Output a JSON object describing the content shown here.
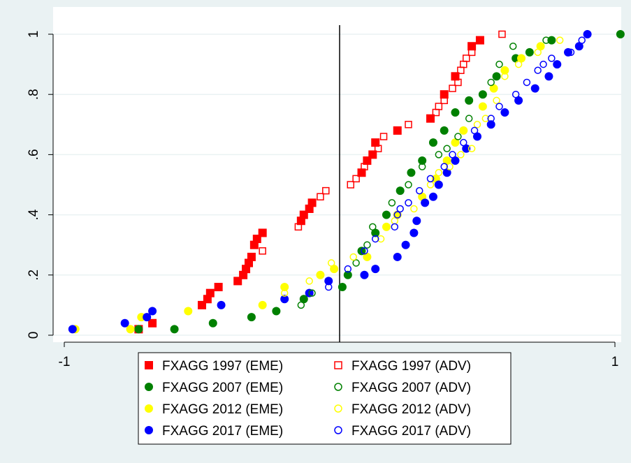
{
  "chart_data": {
    "type": "scatter",
    "title": "",
    "xlabel": "",
    "ylabel": "",
    "xlim": [
      -1,
      1
    ],
    "ylim": [
      0,
      1
    ],
    "x_ticks": [
      {
        "value": -1,
        "label": "-1"
      },
      {
        "value": 1,
        "label": "1"
      }
    ],
    "y_ticks": [
      {
        "value": 0,
        "label": "0"
      },
      {
        "value": 0.2,
        "label": ".2"
      },
      {
        "value": 0.4,
        "label": ".4"
      },
      {
        "value": 0.6,
        "label": ".6"
      },
      {
        "value": 0.8,
        "label": ".8"
      },
      {
        "value": 1,
        "label": "1"
      }
    ],
    "vertical_reference_line": 0,
    "grid": "horizontal",
    "legend_position": "bottom",
    "series": [
      {
        "name": "FXAGG 1997 (EME)",
        "color": "#ff0000",
        "marker": "square",
        "filled": true,
        "points": [
          [
            -0.73,
            0.02
          ],
          [
            -0.68,
            0.04
          ],
          [
            -0.5,
            0.1
          ],
          [
            -0.48,
            0.12
          ],
          [
            -0.47,
            0.14
          ],
          [
            -0.44,
            0.16
          ],
          [
            -0.37,
            0.18
          ],
          [
            -0.35,
            0.2
          ],
          [
            -0.34,
            0.22
          ],
          [
            -0.33,
            0.24
          ],
          [
            -0.32,
            0.26
          ],
          [
            -0.31,
            0.3
          ],
          [
            -0.3,
            0.32
          ],
          [
            -0.28,
            0.34
          ],
          [
            -0.14,
            0.38
          ],
          [
            -0.13,
            0.4
          ],
          [
            -0.11,
            0.42
          ],
          [
            -0.1,
            0.44
          ],
          [
            0.08,
            0.54
          ],
          [
            0.1,
            0.58
          ],
          [
            0.12,
            0.6
          ],
          [
            0.13,
            0.64
          ],
          [
            0.21,
            0.68
          ],
          [
            0.33,
            0.72
          ],
          [
            0.38,
            0.8
          ],
          [
            0.42,
            0.86
          ],
          [
            0.48,
            0.96
          ],
          [
            0.51,
            0.98
          ]
        ]
      },
      {
        "name": "FXAGG 1997 (ADV)",
        "color": "#ff0000",
        "marker": "square",
        "filled": false,
        "points": [
          [
            -0.28,
            0.28
          ],
          [
            -0.15,
            0.36
          ],
          [
            -0.07,
            0.46
          ],
          [
            -0.05,
            0.48
          ],
          [
            0.04,
            0.5
          ],
          [
            0.06,
            0.52
          ],
          [
            0.09,
            0.56
          ],
          [
            0.14,
            0.62
          ],
          [
            0.16,
            0.66
          ],
          [
            0.25,
            0.7
          ],
          [
            0.35,
            0.74
          ],
          [
            0.36,
            0.76
          ],
          [
            0.38,
            0.78
          ],
          [
            0.41,
            0.82
          ],
          [
            0.43,
            0.84
          ],
          [
            0.44,
            0.88
          ],
          [
            0.45,
            0.9
          ],
          [
            0.46,
            0.92
          ],
          [
            0.48,
            0.94
          ],
          [
            0.59,
            1.0
          ]
        ]
      },
      {
        "name": "FXAGG 2007 (EME)",
        "color": "#008000",
        "marker": "circle",
        "filled": true,
        "points": [
          [
            -0.73,
            0.02
          ],
          [
            -0.6,
            0.02
          ],
          [
            -0.46,
            0.04
          ],
          [
            -0.32,
            0.06
          ],
          [
            -0.23,
            0.08
          ],
          [
            -0.13,
            0.12
          ],
          [
            0.01,
            0.16
          ],
          [
            0.03,
            0.2
          ],
          [
            0.08,
            0.28
          ],
          [
            0.13,
            0.34
          ],
          [
            0.17,
            0.4
          ],
          [
            0.22,
            0.48
          ],
          [
            0.26,
            0.54
          ],
          [
            0.3,
            0.58
          ],
          [
            0.34,
            0.64
          ],
          [
            0.38,
            0.68
          ],
          [
            0.42,
            0.74
          ],
          [
            0.47,
            0.78
          ],
          [
            0.52,
            0.8
          ],
          [
            0.57,
            0.86
          ],
          [
            0.64,
            0.92
          ],
          [
            0.69,
            0.94
          ],
          [
            0.77,
            0.98
          ],
          [
            1.02,
            1.0
          ]
        ]
      },
      {
        "name": "FXAGG 2007 (ADV)",
        "color": "#008000",
        "marker": "circle",
        "filled": false,
        "points": [
          [
            -0.14,
            0.1
          ],
          [
            -0.1,
            0.14
          ],
          [
            0.06,
            0.24
          ],
          [
            0.1,
            0.3
          ],
          [
            0.12,
            0.36
          ],
          [
            0.19,
            0.44
          ],
          [
            0.25,
            0.5
          ],
          [
            0.3,
            0.56
          ],
          [
            0.36,
            0.6
          ],
          [
            0.39,
            0.62
          ],
          [
            0.43,
            0.66
          ],
          [
            0.47,
            0.72
          ],
          [
            0.55,
            0.84
          ],
          [
            0.58,
            0.9
          ],
          [
            0.63,
            0.96
          ],
          [
            0.75,
            0.98
          ]
        ]
      },
      {
        "name": "FXAGG 2012 (EME)",
        "color": "#ffff00",
        "marker": "circle",
        "filled": true,
        "points": [
          [
            -0.96,
            0.02
          ],
          [
            -0.76,
            0.02
          ],
          [
            -0.72,
            0.06
          ],
          [
            -0.55,
            0.08
          ],
          [
            -0.28,
            0.1
          ],
          [
            -0.2,
            0.16
          ],
          [
            -0.07,
            0.2
          ],
          [
            -0.02,
            0.22
          ],
          [
            0.1,
            0.26
          ],
          [
            0.17,
            0.36
          ],
          [
            0.21,
            0.4
          ],
          [
            0.3,
            0.46
          ],
          [
            0.35,
            0.52
          ],
          [
            0.39,
            0.58
          ],
          [
            0.42,
            0.64
          ],
          [
            0.45,
            0.68
          ],
          [
            0.52,
            0.76
          ],
          [
            0.56,
            0.82
          ],
          [
            0.6,
            0.88
          ],
          [
            0.66,
            0.92
          ],
          [
            0.73,
            0.96
          ]
        ]
      },
      {
        "name": "FXAGG 2012 (ADV)",
        "color": "#ffff00",
        "marker": "circle",
        "filled": false,
        "points": [
          [
            -0.2,
            0.14
          ],
          [
            -0.11,
            0.18
          ],
          [
            -0.03,
            0.24
          ],
          [
            0.05,
            0.26
          ],
          [
            0.15,
            0.32
          ],
          [
            0.2,
            0.38
          ],
          [
            0.27,
            0.42
          ],
          [
            0.33,
            0.5
          ],
          [
            0.36,
            0.54
          ],
          [
            0.4,
            0.56
          ],
          [
            0.44,
            0.6
          ],
          [
            0.48,
            0.62
          ],
          [
            0.5,
            0.7
          ],
          [
            0.53,
            0.72
          ],
          [
            0.57,
            0.78
          ],
          [
            0.6,
            0.86
          ],
          [
            0.65,
            0.9
          ],
          [
            0.72,
            0.94
          ],
          [
            0.8,
            0.98
          ]
        ]
      },
      {
        "name": "FXAGG 2017 (EME)",
        "color": "#0000ff",
        "marker": "circle",
        "filled": true,
        "points": [
          [
            -0.97,
            0.02
          ],
          [
            -0.78,
            0.04
          ],
          [
            -0.7,
            0.06
          ],
          [
            -0.68,
            0.08
          ],
          [
            -0.43,
            0.1
          ],
          [
            -0.2,
            0.12
          ],
          [
            -0.11,
            0.14
          ],
          [
            -0.04,
            0.18
          ],
          [
            0.09,
            0.2
          ],
          [
            0.13,
            0.22
          ],
          [
            0.21,
            0.26
          ],
          [
            0.24,
            0.3
          ],
          [
            0.27,
            0.34
          ],
          [
            0.28,
            0.38
          ],
          [
            0.31,
            0.44
          ],
          [
            0.34,
            0.46
          ],
          [
            0.36,
            0.5
          ],
          [
            0.39,
            0.54
          ],
          [
            0.42,
            0.58
          ],
          [
            0.46,
            0.62
          ],
          [
            0.5,
            0.66
          ],
          [
            0.55,
            0.7
          ],
          [
            0.6,
            0.74
          ],
          [
            0.65,
            0.78
          ],
          [
            0.71,
            0.82
          ],
          [
            0.76,
            0.86
          ],
          [
            0.79,
            0.9
          ],
          [
            0.83,
            0.94
          ],
          [
            0.87,
            0.96
          ],
          [
            0.9,
            1.0
          ]
        ]
      },
      {
        "name": "FXAGG 2017 (ADV)",
        "color": "#0000ff",
        "marker": "circle",
        "filled": false,
        "points": [
          [
            -0.04,
            0.16
          ],
          [
            0.03,
            0.22
          ],
          [
            0.09,
            0.28
          ],
          [
            0.13,
            0.32
          ],
          [
            0.2,
            0.36
          ],
          [
            0.21,
            0.4
          ],
          [
            0.22,
            0.42
          ],
          [
            0.25,
            0.44
          ],
          [
            0.29,
            0.48
          ],
          [
            0.33,
            0.52
          ],
          [
            0.38,
            0.56
          ],
          [
            0.41,
            0.6
          ],
          [
            0.45,
            0.64
          ],
          [
            0.49,
            0.68
          ],
          [
            0.55,
            0.72
          ],
          [
            0.58,
            0.76
          ],
          [
            0.64,
            0.8
          ],
          [
            0.68,
            0.84
          ],
          [
            0.72,
            0.88
          ],
          [
            0.74,
            0.9
          ],
          [
            0.77,
            0.92
          ],
          [
            0.84,
            0.94
          ],
          [
            0.88,
            0.98
          ]
        ]
      }
    ]
  }
}
